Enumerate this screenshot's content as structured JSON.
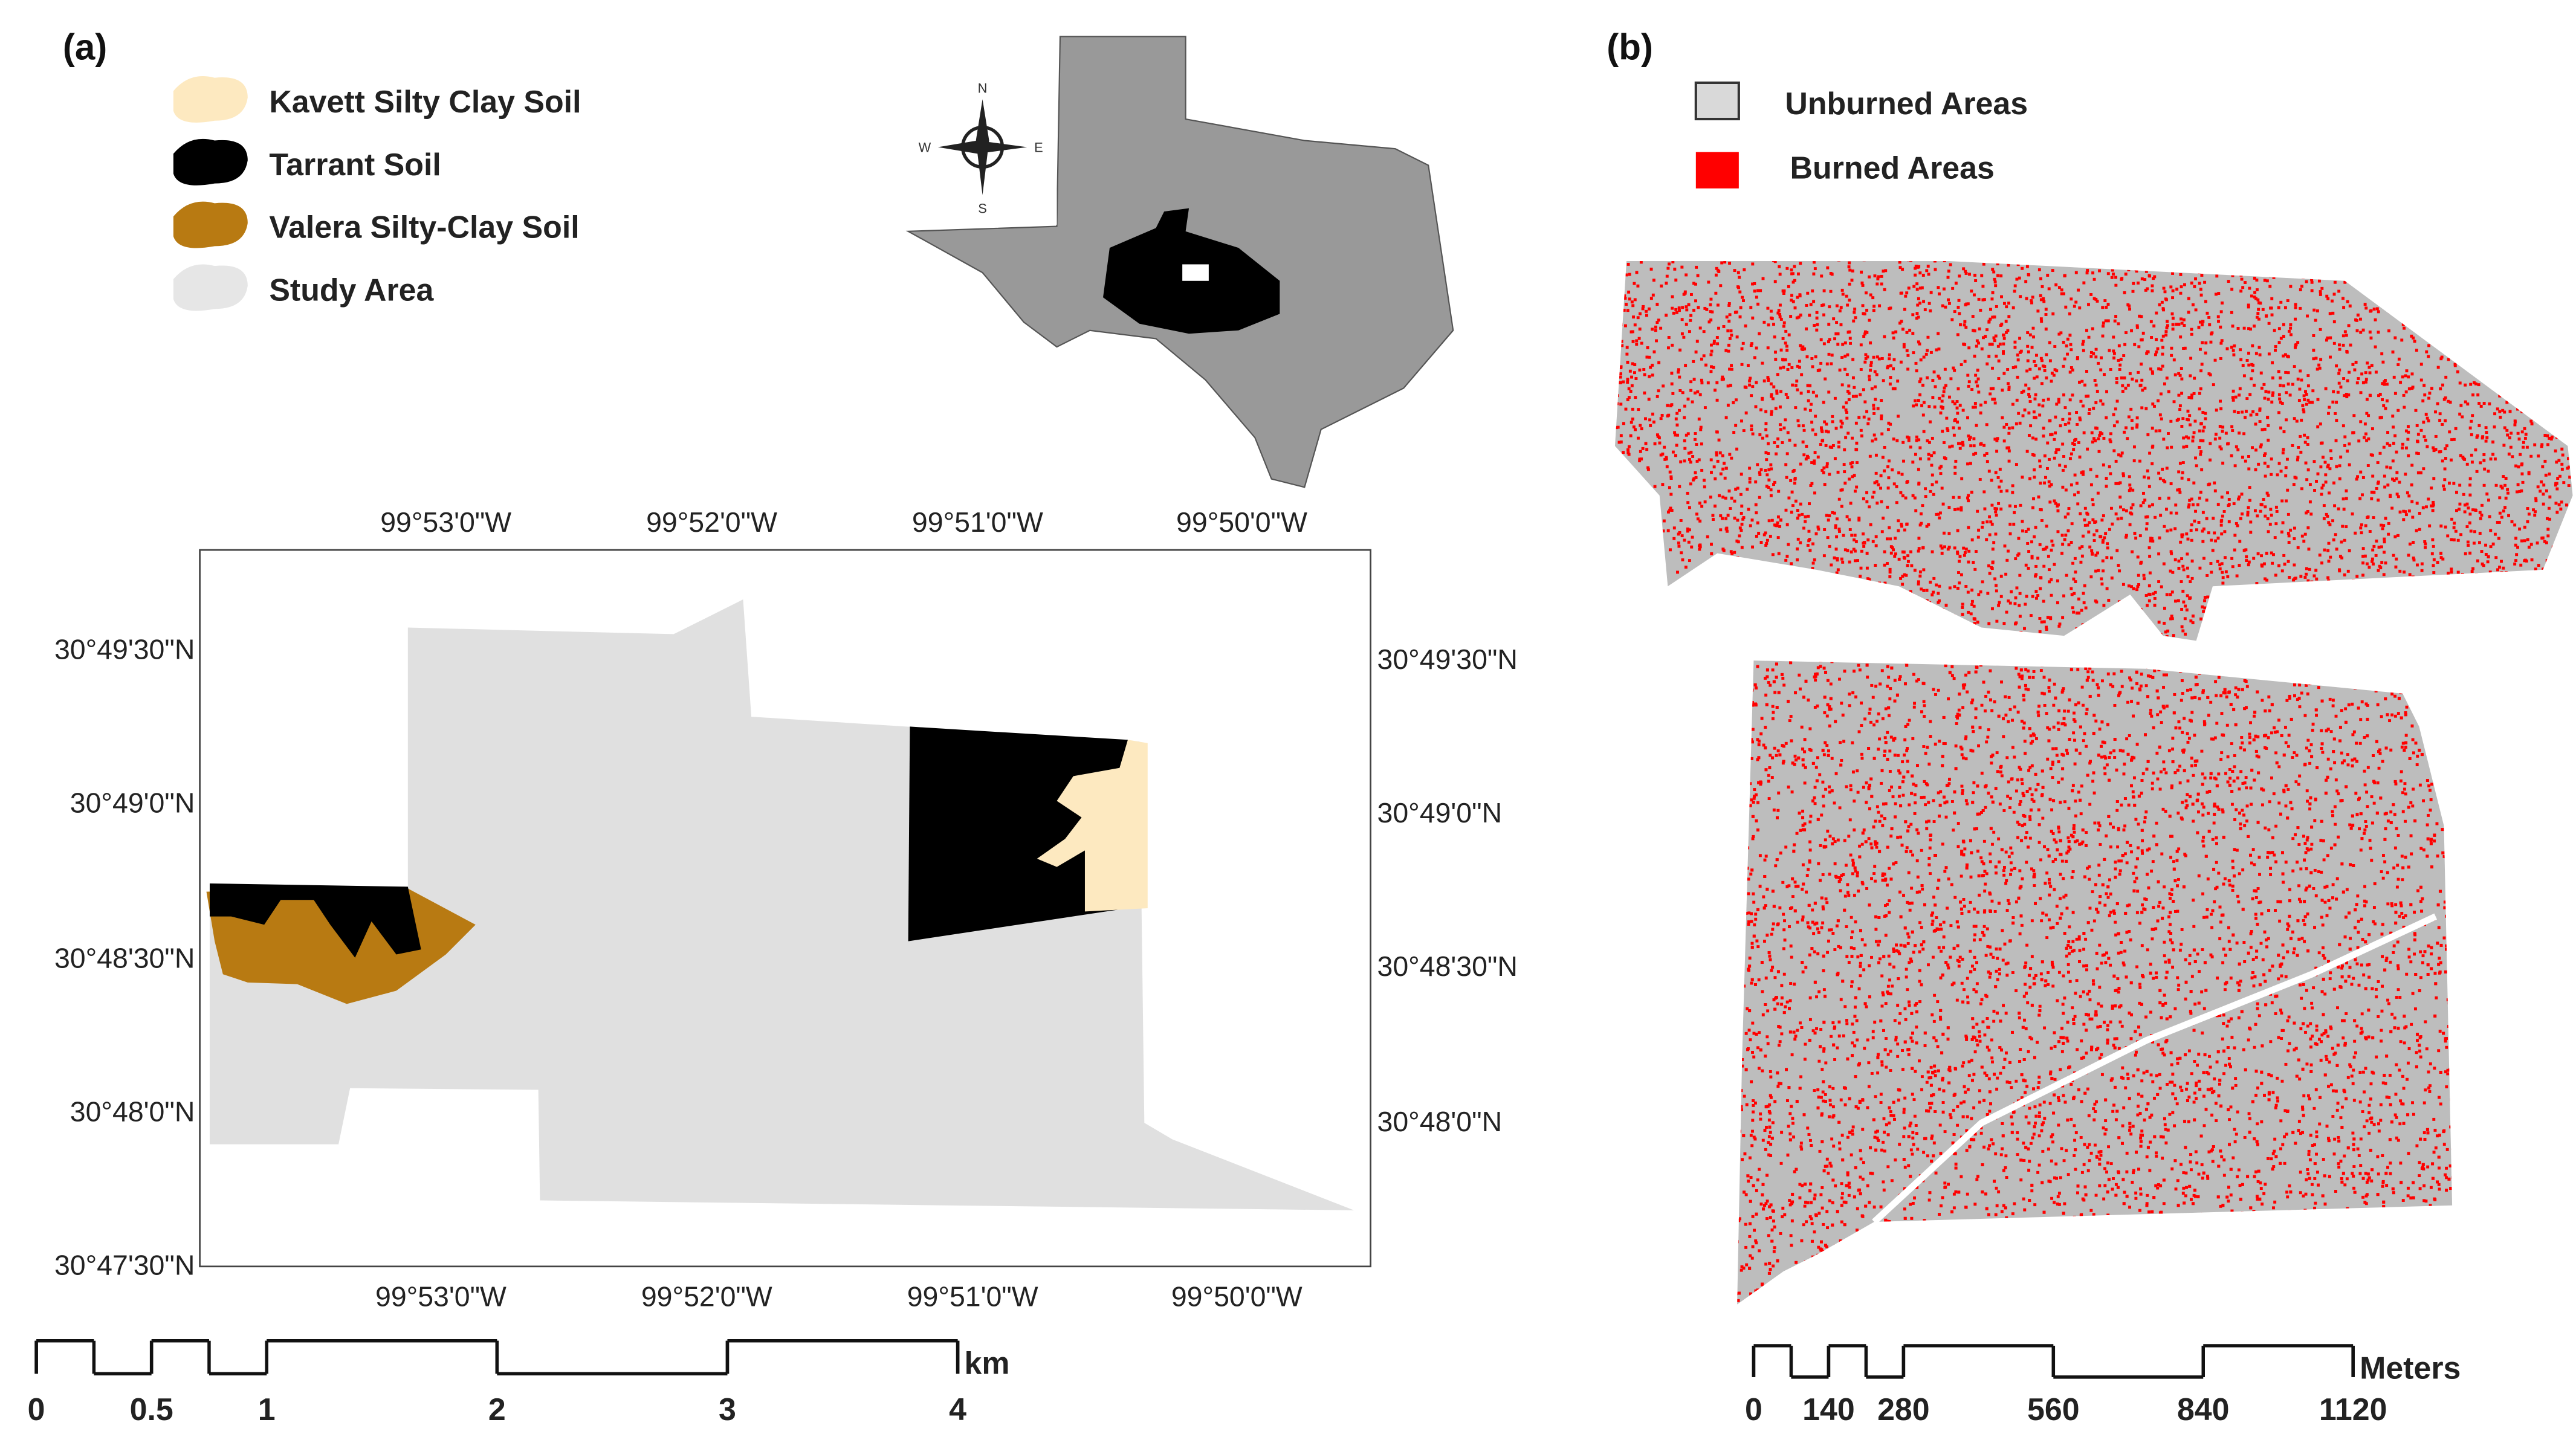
{
  "panel_a": {
    "label": "(a)",
    "legend": [
      "Kavett Silty Clay Soil",
      "Tarrant Soil",
      "Valera Silty-Clay Soil",
      "Study Area"
    ],
    "compass": {
      "n": "N",
      "e": "E",
      "s": "S",
      "w": "W"
    },
    "top_ticks": [
      "99°53'0\"W",
      "99°52'0\"W",
      "99°51'0\"W",
      "99°50'0\"W"
    ],
    "bottom_ticks": [
      "99°53'0\"W",
      "99°52'0\"W",
      "99°51'0\"W",
      "99°50'0\"W"
    ],
    "left_ticks": [
      "30°49'30\"N",
      "30°49'0\"N",
      "30°48'30\"N",
      "30°48'0\"N",
      "30°47'30\"N"
    ],
    "right_ticks": [
      "30°49'30\"N",
      "30°49'0\"N",
      "30°48'30\"N",
      "30°48'0\"N"
    ],
    "scale": {
      "ticks": [
        0,
        0.5,
        1,
        2,
        3,
        4
      ],
      "unit": "km"
    }
  },
  "panel_b": {
    "label": "(b)",
    "legend": [
      "Unburned Areas",
      "Burned Areas"
    ],
    "scale": {
      "ticks": [
        0,
        140,
        280,
        560,
        840,
        1120
      ],
      "unit": "Meters"
    }
  }
}
